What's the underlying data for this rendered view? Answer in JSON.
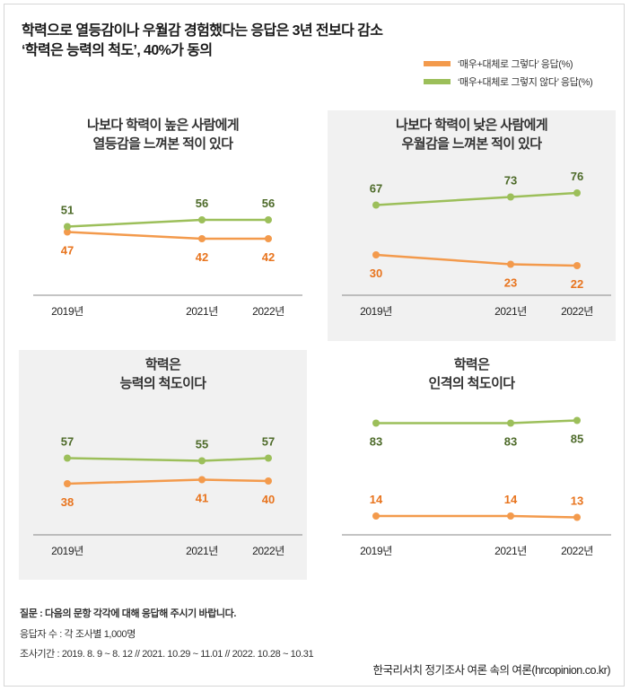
{
  "headline": {
    "line1": "학력으로 열등감이나 우월감 경험했다는 응답은 3년 전보다 감소",
    "line2": "‘학력은 능력의 척도’, 40%가 동의"
  },
  "legend": [
    {
      "label": "‘매우+대체로 그렇다’ 응답(%)",
      "color": "#f39a4c"
    },
    {
      "label": "‘매우+대체로 그렇지 않다’ 응답(%)",
      "color": "#9cbf5a"
    }
  ],
  "colors": {
    "agree_line": "#f39a4c",
    "agree_label": "#e8741e",
    "disagree_line": "#9cbf5a",
    "disagree_label": "#4e6b2a",
    "axis": "#888888"
  },
  "chart_data": [
    {
      "type": "line",
      "title": "나보다 학력이 높은 사람에게\n열등감을 느껴본 적이 있다",
      "title_lines": [
        "나보다 학력이 높은 사람에게",
        "열등감을 느껴본 적이 있다"
      ],
      "categories": [
        "2019년",
        "2021년",
        "2022년"
      ],
      "series": [
        {
          "name": "‘매우+대체로 그렇다’ 응답(%)",
          "key": "agree",
          "values": [
            47,
            42,
            42
          ],
          "label_position": "below"
        },
        {
          "name": "‘매우+대체로 그렇지 않다’ 응답(%)",
          "key": "disagree",
          "values": [
            51,
            56,
            56
          ],
          "label_position": "above"
        }
      ],
      "ylim": [
        0,
        100
      ],
      "grid": false,
      "shaded_background": false
    },
    {
      "type": "line",
      "title": "나보다 학력이 낮은 사람에게\n우월감을 느껴본 적이 있다",
      "title_lines": [
        "나보다 학력이 낮은 사람에게",
        "우월감을 느껴본 적이 있다"
      ],
      "categories": [
        "2019년",
        "2021년",
        "2022년"
      ],
      "series": [
        {
          "name": "‘매우+대체로 그렇다’ 응답(%)",
          "key": "agree",
          "values": [
            30,
            23,
            22
          ],
          "label_position": "below"
        },
        {
          "name": "‘매우+대체로 그렇지 않다’ 응답(%)",
          "key": "disagree",
          "values": [
            67,
            73,
            76
          ],
          "label_position": "above"
        }
      ],
      "ylim": [
        0,
        100
      ],
      "grid": false,
      "shaded_background": true
    },
    {
      "type": "line",
      "title": "학력은\n능력의 척도이다",
      "title_lines": [
        "학력은",
        "능력의 척도이다"
      ],
      "categories": [
        "2019년",
        "2021년",
        "2022년"
      ],
      "series": [
        {
          "name": "‘매우+대체로 그렇다’ 응답(%)",
          "key": "agree",
          "values": [
            38,
            41,
            40
          ],
          "label_position": "below"
        },
        {
          "name": "‘매우+대체로 그렇지 않다’ 응답(%)",
          "key": "disagree",
          "values": [
            57,
            55,
            57
          ],
          "label_position": "above"
        }
      ],
      "ylim": [
        0,
        100
      ],
      "grid": false,
      "shaded_background": true
    },
    {
      "type": "line",
      "title": "학력은\n인격의 척도이다",
      "title_lines": [
        "학력은",
        "인격의 척도이다"
      ],
      "categories": [
        "2019년",
        "2021년",
        "2022년"
      ],
      "series": [
        {
          "name": "‘매우+대체로 그렇다’ 응답(%)",
          "key": "agree",
          "values": [
            14,
            14,
            13
          ],
          "label_position": "above"
        },
        {
          "name": "‘매우+대체로 그렇지 않다’ 응답(%)",
          "key": "disagree",
          "values": [
            83,
            83,
            85
          ],
          "label_position": "below"
        }
      ],
      "ylim": [
        0,
        100
      ],
      "grid": false,
      "shaded_background": false
    }
  ],
  "footer": {
    "question": "질문 :  다음의 문항 각각에 대해 응답해 주시기 바랍니다.",
    "respondents": "응답자 수 : 각 조사별 1,000명",
    "period": "조사기간 : 2019. 8. 9 ~ 8. 12 // 2021. 10.29 ~ 11.01 // 2022. 10.28 ~ 10.31",
    "source": "한국리서치 정기조사 여론 속의 여론(hrcopinion.co.kr)"
  }
}
